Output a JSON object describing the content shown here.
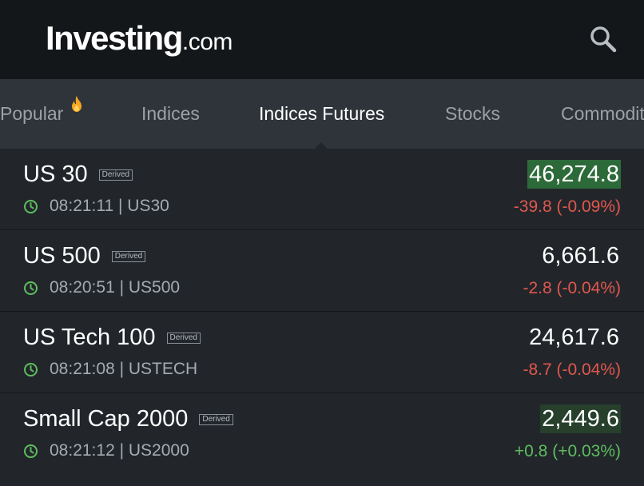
{
  "header": {
    "logo_main": "Investing",
    "logo_suffix": ".com",
    "search_icon": "search-icon"
  },
  "tabs": [
    {
      "label": "Popular",
      "icon": "fire-icon",
      "active": false
    },
    {
      "label": "Indices",
      "active": false
    },
    {
      "label": "Indices Futures",
      "active": true
    },
    {
      "label": "Stocks",
      "active": false
    },
    {
      "label": "Commodit",
      "active": false
    }
  ],
  "rows": [
    {
      "name": "US 30",
      "badge": "Derived",
      "time": "08:21:11",
      "symbol": "US30",
      "sub": "08:21:11 | US30",
      "price": "46,274.8",
      "change": "-39.8 (-0.09%)",
      "direction": "down"
    },
    {
      "name": "US 500",
      "badge": "Derived",
      "time": "08:20:51",
      "symbol": "US500",
      "sub": "08:20:51 | US500",
      "price": "6,661.6",
      "change": "-2.8 (-0.04%)",
      "direction": "down"
    },
    {
      "name": "US Tech 100",
      "badge": "Derived",
      "time": "08:21:08",
      "symbol": "USTECH",
      "sub": "08:21:08 | USTECH",
      "price": "24,617.6",
      "change": "-8.7 (-0.04%)",
      "direction": "down"
    },
    {
      "name": "Small Cap 2000",
      "badge": "Derived",
      "time": "08:21:12",
      "symbol": "US2000",
      "sub": "08:21:12 | US2000",
      "price": "2,449.6",
      "change": "+0.8 (+0.03%)",
      "direction": "up"
    }
  ],
  "colors": {
    "header_bg": "#14171a",
    "tabs_bg": "#2f343a",
    "list_bg": "#22262b",
    "negative": "#e2574c",
    "positive": "#5ebd5e",
    "highlight_up": "#2d6a3a"
  }
}
